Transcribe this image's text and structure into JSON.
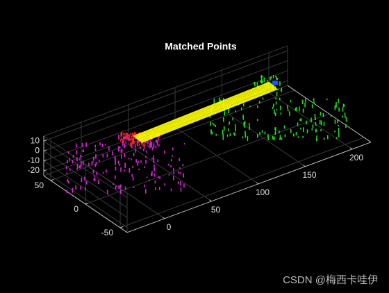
{
  "chart_data": {
    "type": "scatter3",
    "title": "Matched Points",
    "xlim": [
      -40,
      220
    ],
    "ylim": [
      -60,
      60
    ],
    "zlim": [
      -25,
      15
    ],
    "xticks": [
      0,
      50,
      100,
      150,
      200
    ],
    "yticks": [
      -50,
      0,
      50
    ],
    "zticks": [
      -20,
      -10,
      0,
      10
    ],
    "grid": true
  },
  "watermark": "CSDN @梅西卡哇伊"
}
